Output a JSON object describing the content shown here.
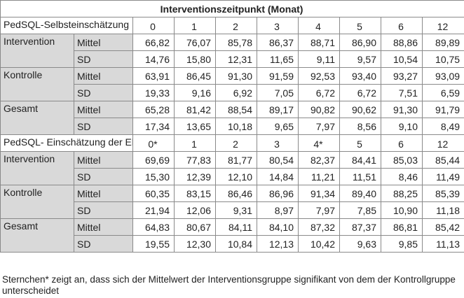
{
  "title": "Interventionszeitpunkt (Monat)",
  "sections": [
    {
      "label": "PedSQL-Selbsteinschätzung",
      "timepoints": [
        "0",
        "1",
        "2",
        "3",
        "4",
        "5",
        "6",
        "12"
      ],
      "groups": [
        {
          "name": "Intervention",
          "rows": [
            {
              "stat": "Mittel",
              "values": [
                "66,82",
                "76,07",
                "85,78",
                "86,37",
                "88,71",
                "86,90",
                "88,86",
                "89,89"
              ]
            },
            {
              "stat": "SD",
              "values": [
                "14,76",
                "15,80",
                "12,31",
                "11,65",
                "9,11",
                "9,57",
                "10,54",
                "10,75"
              ]
            }
          ]
        },
        {
          "name": "Kontrolle",
          "rows": [
            {
              "stat": "Mittel",
              "values": [
                "63,91",
                "86,45",
                "91,30",
                "91,59",
                "92,53",
                "93,40",
                "93,27",
                "93,09"
              ]
            },
            {
              "stat": "SD",
              "values": [
                "19,33",
                "9,16",
                "6,92",
                "7,05",
                "6,72",
                "6,72",
                "7,51",
                "6,59"
              ]
            }
          ]
        },
        {
          "name": "Gesamt",
          "rows": [
            {
              "stat": "Mittel",
              "values": [
                "65,28",
                "81,42",
                "88,54",
                "89,17",
                "90,82",
                "90,62",
                "91,30",
                "91,79"
              ]
            },
            {
              "stat": "SD",
              "values": [
                "17,34",
                "13,65",
                "10,18",
                "9,65",
                "7,97",
                "8,56",
                "9,10",
                "8,49"
              ]
            }
          ]
        }
      ]
    },
    {
      "label": "PedSQL- Einschätzung der Eltern",
      "timepoints": [
        "0*",
        "1",
        "2",
        "3",
        "4*",
        "5",
        "6",
        "12"
      ],
      "groups": [
        {
          "name": "Intervention",
          "rows": [
            {
              "stat": "Mittel",
              "values": [
                "69,69",
                "77,83",
                "81,77",
                "80,54",
                "82,37",
                "84,41",
                "85,03",
                "85,44"
              ]
            },
            {
              "stat": "SD",
              "values": [
                "15,30",
                "12,39",
                "12,10",
                "14,84",
                "11,21",
                "11,51",
                "8,46",
                "11,49"
              ]
            }
          ]
        },
        {
          "name": "Kontrolle",
          "rows": [
            {
              "stat": "Mittel",
              "values": [
                "60,35",
                "83,15",
                "86,46",
                "86,96",
                "91,34",
                "89,40",
                "88,25",
                "85,39"
              ]
            },
            {
              "stat": "SD",
              "values": [
                "21,94",
                "12,06",
                "9,31",
                "8,97",
                "7,97",
                "7,85",
                "10,90",
                "11,18"
              ]
            }
          ]
        },
        {
          "name": "Gesamt",
          "rows": [
            {
              "stat": "Mittel",
              "values": [
                "64,83",
                "80,67",
                "84,11",
                "84,10",
                "87,32",
                "87,37",
                "86,81",
                "85,42"
              ]
            },
            {
              "stat": "SD",
              "values": [
                "19,55",
                "12,30",
                "10,84",
                "12,13",
                "10,42",
                "9,63",
                "9,85",
                "11,13"
              ]
            }
          ]
        }
      ]
    }
  ],
  "footnote": "Sternchen* zeigt an, dass sich der Mittelwert der Interventionsgruppe signifikant von dem der Kontrollgruppe unterscheidet"
}
